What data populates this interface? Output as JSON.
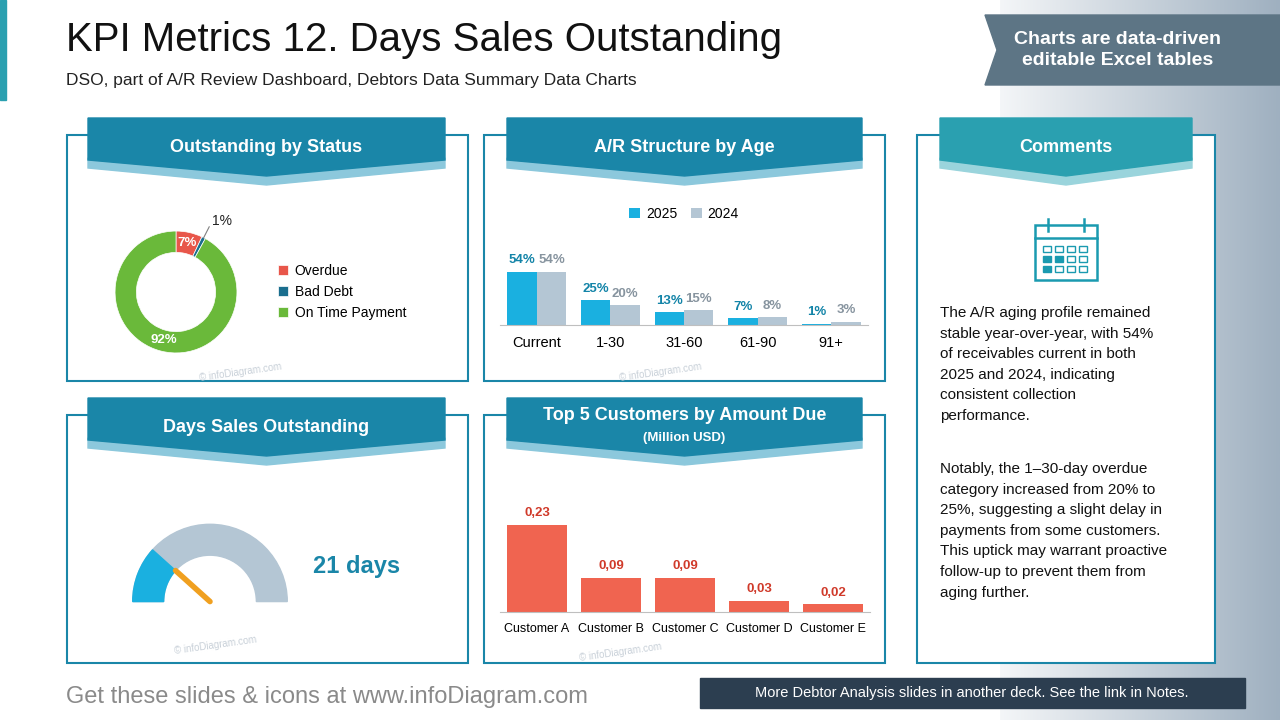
{
  "header": {
    "title": "KPI Metrics 12. Days Sales Outstanding",
    "subtitle": "DSO, part of A/R Review Dashboard, Debtors Data Summary Data Charts",
    "badge": "Charts are data-driven editable Excel tables"
  },
  "chart_data": [
    {
      "type": "pie",
      "title": "Outstanding by Status",
      "categories": [
        "Overdue",
        "Bad Debt",
        "On Time Payment"
      ],
      "values": [
        7,
        1,
        92
      ],
      "value_labels": [
        "7%",
        "1%",
        "92%"
      ],
      "colors": [
        "#e8564a",
        "#1a6e8e",
        "#6ab93a"
      ],
      "data_labels": true,
      "legend": "right"
    },
    {
      "type": "bar",
      "title": "A/R Structure by Age",
      "categories": [
        "Current",
        "1-30",
        "31-60",
        "61-90",
        "91+"
      ],
      "series": [
        {
          "name": "2025",
          "color": "#1ab0e0",
          "values": [
            54,
            25,
            13,
            7,
            1
          ],
          "value_labels": [
            "54%",
            "25%",
            "13%",
            "7%",
            "1%"
          ]
        },
        {
          "name": "2024",
          "color": "#b4c6d4",
          "values": [
            54,
            20,
            15,
            8,
            3
          ],
          "value_labels": [
            "54%",
            "20%",
            "15%",
            "8%",
            "3%"
          ]
        }
      ],
      "data_labels": true,
      "tick_labels": "x",
      "legend": "top"
    },
    {
      "type": "gauge",
      "title": "Days Sales Outstanding",
      "values": [
        21
      ],
      "value_labels": [
        "21 days"
      ],
      "range": [
        0,
        90
      ],
      "color": "#1ab0e0"
    },
    {
      "type": "bar",
      "title": "Top 5 Customers by Amount Due",
      "subtitle": "(Million USD)",
      "categories": [
        "Customer A",
        "Customer B",
        "Customer C",
        "Customer D",
        "Customer E"
      ],
      "values": [
        0.23,
        0.09,
        0.09,
        0.03,
        0.02
      ],
      "value_labels": [
        "0,23",
        "0,09",
        "0,09",
        "0,03",
        "0,02"
      ],
      "color": "#f06450",
      "data_labels": true,
      "tick_labels": "x"
    }
  ],
  "comments": {
    "title": "Comments",
    "paragraphs": [
      "The A/R aging profile remained stable year-over-year, with 54% of receivables current in both 2025 and 2024, indicating consistent collection performance.",
      "Notably, the 1–30-day overdue category increased from 20% to 25%, suggesting a slight delay in payments from some customers. This uptick may warrant proactive follow-up to prevent them from aging further."
    ]
  },
  "footer": {
    "text": "Get these slides & icons at www.infoDiagram.com",
    "banner": "More Debtor Analysis slides in another deck. See the link in Notes."
  },
  "watermark": "© infoDiagram.com"
}
